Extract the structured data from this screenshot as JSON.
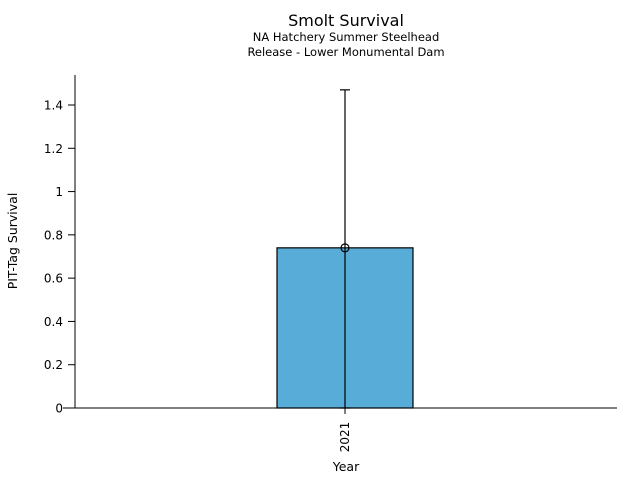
{
  "chart_data": {
    "type": "bar",
    "title": "Smolt Survival",
    "subtitle_line1": "NA Hatchery Summer Steelhead",
    "subtitle_line2": "Release - Lower Monumental Dam",
    "xlabel": "Year",
    "ylabel": "PIT-Tag Survival",
    "categories": [
      "2021"
    ],
    "values": [
      0.74
    ],
    "error_low": [
      0.0
    ],
    "error_high": [
      1.47
    ],
    "yticks": [
      0,
      0.2,
      0.4,
      0.6,
      0.8,
      1,
      1.2,
      1.4
    ],
    "ytick_labels": [
      "0",
      "0.2",
      "0.4",
      "0.6",
      "0.8",
      "1",
      "1.2",
      "1.4"
    ],
    "ylim": [
      0,
      1.54
    ],
    "grid": false,
    "legend_position": "none",
    "marker": "open-circle",
    "colors": {
      "bar_fill": "#58ACD8",
      "bar_edge": "#000000",
      "error_bar": "#000000",
      "axis": "#000000",
      "text": "#000000",
      "background": "#ffffff"
    }
  }
}
